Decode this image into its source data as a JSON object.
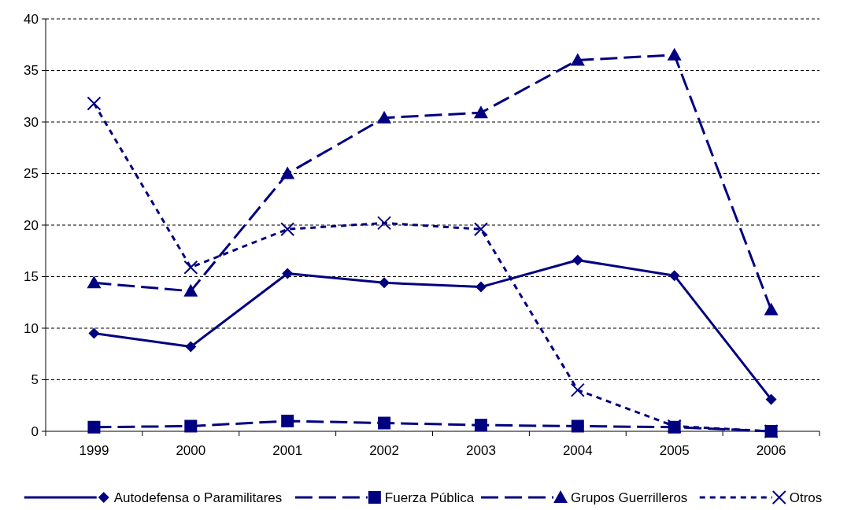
{
  "chart_data": {
    "type": "line",
    "categories": [
      "1999",
      "2000",
      "2001",
      "2002",
      "2003",
      "2004",
      "2005",
      "2006"
    ],
    "ylim": [
      0,
      40
    ],
    "yticks": [
      0,
      5,
      10,
      15,
      20,
      25,
      30,
      35,
      40
    ],
    "grid": "y",
    "legend": "bottom",
    "series": [
      {
        "name": "Autodefensa o Paramilitares",
        "color": "#000080",
        "marker": "diamond",
        "line_style": "solid",
        "values": [
          9.5,
          8.2,
          15.3,
          14.4,
          14.0,
          16.6,
          15.1,
          3.1
        ]
      },
      {
        "name": "Fuerza Pública",
        "color": "#000080",
        "marker": "square",
        "line_style": "dashed",
        "values": [
          0.4,
          0.5,
          1.0,
          0.8,
          0.6,
          0.5,
          0.4,
          0
        ]
      },
      {
        "name": "Grupos Guerrilleros",
        "color": "#000080",
        "marker": "triangle",
        "line_style": "dashed",
        "values": [
          14.4,
          13.6,
          25,
          30.4,
          30.9,
          36,
          36.5,
          11.8
        ]
      },
      {
        "name": "Otros",
        "color": "#000080",
        "marker": "cross",
        "line_style": "dotted",
        "values": [
          31.8,
          15.9,
          19.6,
          20.2,
          19.6,
          4.0,
          0.5,
          0
        ]
      }
    ]
  }
}
